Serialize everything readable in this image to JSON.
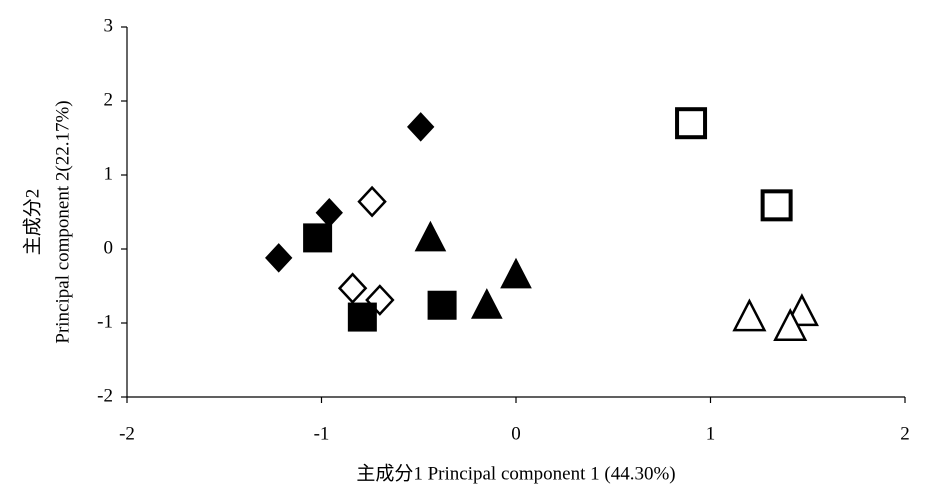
{
  "chart_data": {
    "type": "scatter",
    "x_label": "主成分1 Principal component 1 (44.30%)",
    "y_label": [
      "主成分2",
      "Principal component 2(22.17%)"
    ],
    "xlim": [
      -2,
      2
    ],
    "xticks": [
      -2,
      -1,
      0,
      1,
      2
    ],
    "ylim": [
      -2,
      3
    ],
    "yticks": [
      -2,
      -1,
      0,
      1,
      2,
      3
    ],
    "series": [
      {
        "marker": "diamond",
        "filled": true,
        "color": "#000000",
        "x": [
          -0.49,
          -0.96,
          -1.22
        ],
        "values": [
          1.65,
          0.49,
          -0.12
        ]
      },
      {
        "marker": "diamond",
        "filled": false,
        "color": "#000000",
        "x": [
          -0.74,
          -0.84,
          -0.7
        ],
        "values": [
          0.64,
          -0.53,
          -0.69
        ]
      },
      {
        "marker": "square",
        "filled": true,
        "color": "#000000",
        "x": [
          -1.02,
          -0.79,
          -0.38
        ],
        "values": [
          0.15,
          -0.92,
          -0.76
        ]
      },
      {
        "marker": "triangle",
        "filled": true,
        "color": "#000000",
        "x": [
          -0.44,
          0.0,
          -0.15
        ],
        "values": [
          0.15,
          -0.35,
          -0.76
        ]
      },
      {
        "marker": "square",
        "filled": false,
        "color": "#000000",
        "x": [
          0.9,
          1.34
        ],
        "values": [
          1.7,
          0.59
        ]
      },
      {
        "marker": "triangle",
        "filled": false,
        "color": "#000000",
        "x": [
          1.2,
          1.47,
          1.41
        ],
        "values": [
          -0.92,
          -0.85,
          -1.05
        ]
      }
    ]
  }
}
